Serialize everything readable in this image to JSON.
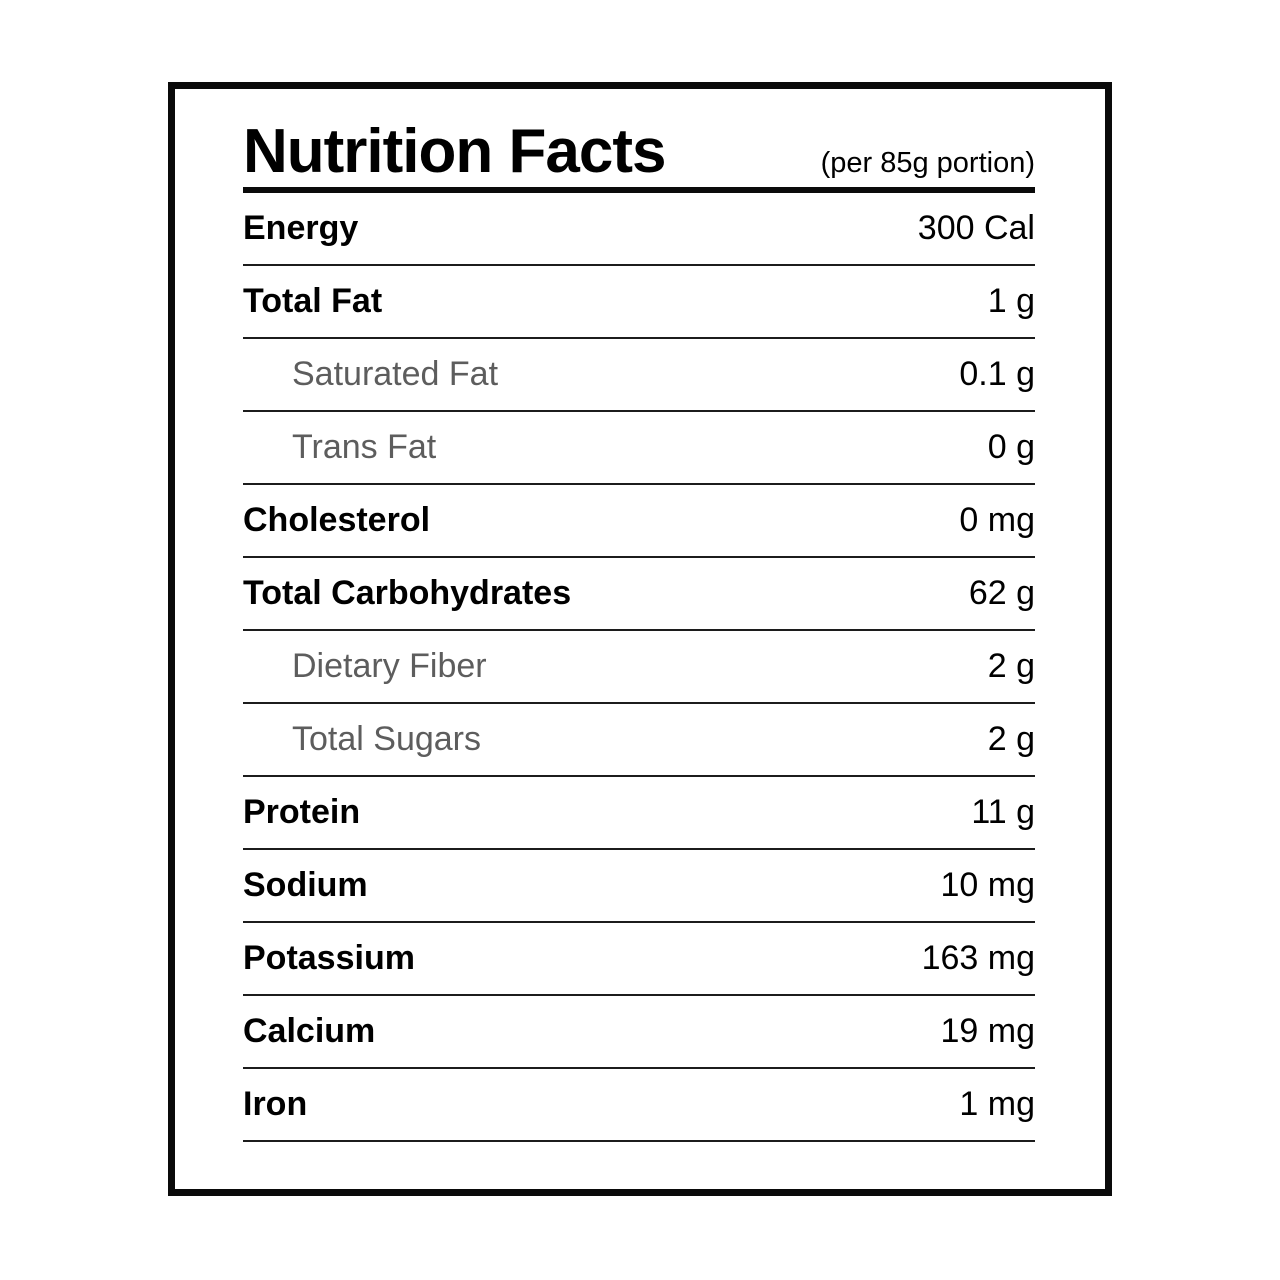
{
  "label": {
    "title": "Nutrition Facts",
    "serving_note": "(per 85g portion)",
    "rows": [
      {
        "name": "Energy",
        "value": "300 Cal",
        "indent": false
      },
      {
        "name": "Total Fat",
        "value": "1 g",
        "indent": false
      },
      {
        "name": "Saturated Fat",
        "value": "0.1 g",
        "indent": true
      },
      {
        "name": "Trans Fat",
        "value": "0 g",
        "indent": true
      },
      {
        "name": "Cholesterol",
        "value": "0 mg",
        "indent": false
      },
      {
        "name": "Total Carbohydrates",
        "value": "62 g",
        "indent": false
      },
      {
        "name": "Dietary Fiber",
        "value": "2 g",
        "indent": true
      },
      {
        "name": "Total Sugars",
        "value": "2 g",
        "indent": true
      },
      {
        "name": "Protein",
        "value": "11 g",
        "indent": false
      },
      {
        "name": "Sodium",
        "value": "10 mg",
        "indent": false
      },
      {
        "name": "Potassium",
        "value": "163 mg",
        "indent": false
      },
      {
        "name": "Calcium",
        "value": "19 mg",
        "indent": false
      },
      {
        "name": "Iron",
        "value": "1 mg",
        "indent": false
      }
    ],
    "colors": {
      "background": "#ffffff",
      "text": "#000000",
      "sub_text": "#5d5d5d",
      "border": "#0a0a0a",
      "divider": "#1c1c1c"
    }
  }
}
